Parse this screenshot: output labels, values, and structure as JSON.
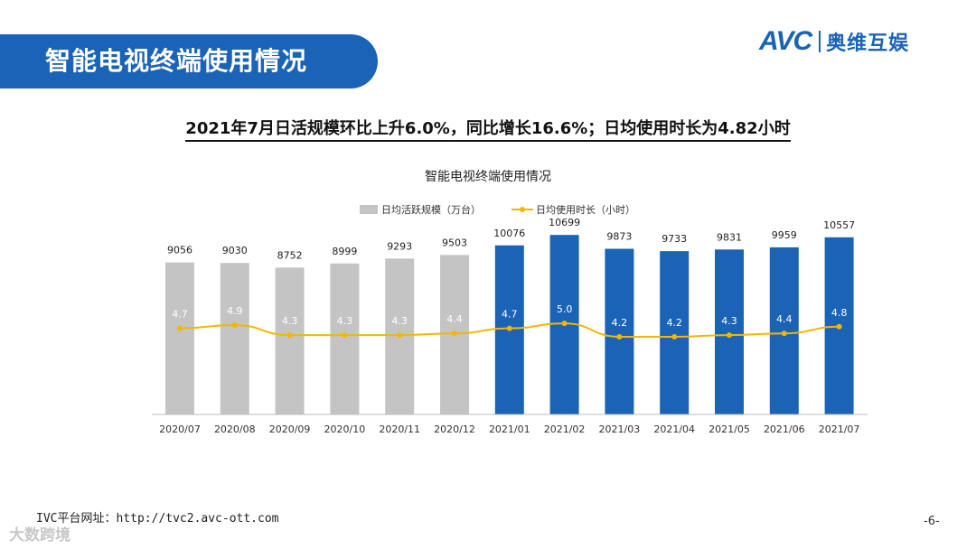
{
  "banner_title": "智能电视终端使用情况",
  "logo": {
    "brand": "AVC",
    "name_cn": "奥维互娱"
  },
  "headline": "2021年7月日活规模环比上升6.0%，同比增长16.6%；日均使用时长为4.82小时",
  "footer": {
    "url": "IVC平台网址：http://tvc2.avc-ott.com",
    "page": "-6-",
    "watermark": "大数跨境"
  },
  "colors": {
    "gray_bar": "#c4c4c4",
    "blue_bar": "#1a63b6",
    "line": "#f2b705",
    "line_label": "#ffffff"
  },
  "chart_data": {
    "type": "bar",
    "title": "智能电视终端使用情况",
    "categories": [
      "2020/07",
      "2020/08",
      "2020/09",
      "2020/10",
      "2020/11",
      "2020/12",
      "2021/01",
      "2021/02",
      "2021/03",
      "2021/04",
      "2021/05",
      "2021/06",
      "2021/07"
    ],
    "series": [
      {
        "name": "日均活跃规模（万台）",
        "type": "bar",
        "axis": "left",
        "values": [
          9056,
          9030,
          8752,
          8999,
          9293,
          9503,
          10076,
          10699,
          9873,
          9733,
          9831,
          9959,
          10557
        ],
        "labels": [
          "9056",
          "9030",
          "8752",
          "8999",
          "9293",
          "9503",
          "10076",
          "10699",
          "9873",
          "9733",
          "9831",
          "9959",
          "10557"
        ]
      },
      {
        "name": "日均使用时长（小时）",
        "type": "line",
        "axis": "right",
        "values": [
          4.7,
          4.9,
          4.3,
          4.3,
          4.3,
          4.4,
          4.7,
          5.0,
          4.2,
          4.2,
          4.3,
          4.4,
          4.8
        ],
        "labels": [
          "4.7",
          "4.9",
          "4.3",
          "4.3",
          "4.3",
          "4.4",
          "4.7",
          "5.0",
          "4.2",
          "4.2",
          "4.3",
          "4.4",
          "4.8"
        ]
      }
    ],
    "highlight_from_index": 6,
    "ylim_left": [
      0,
      12000
    ],
    "ylim_right": [
      0,
      12
    ],
    "legend_position": "top-center",
    "grid": false
  }
}
